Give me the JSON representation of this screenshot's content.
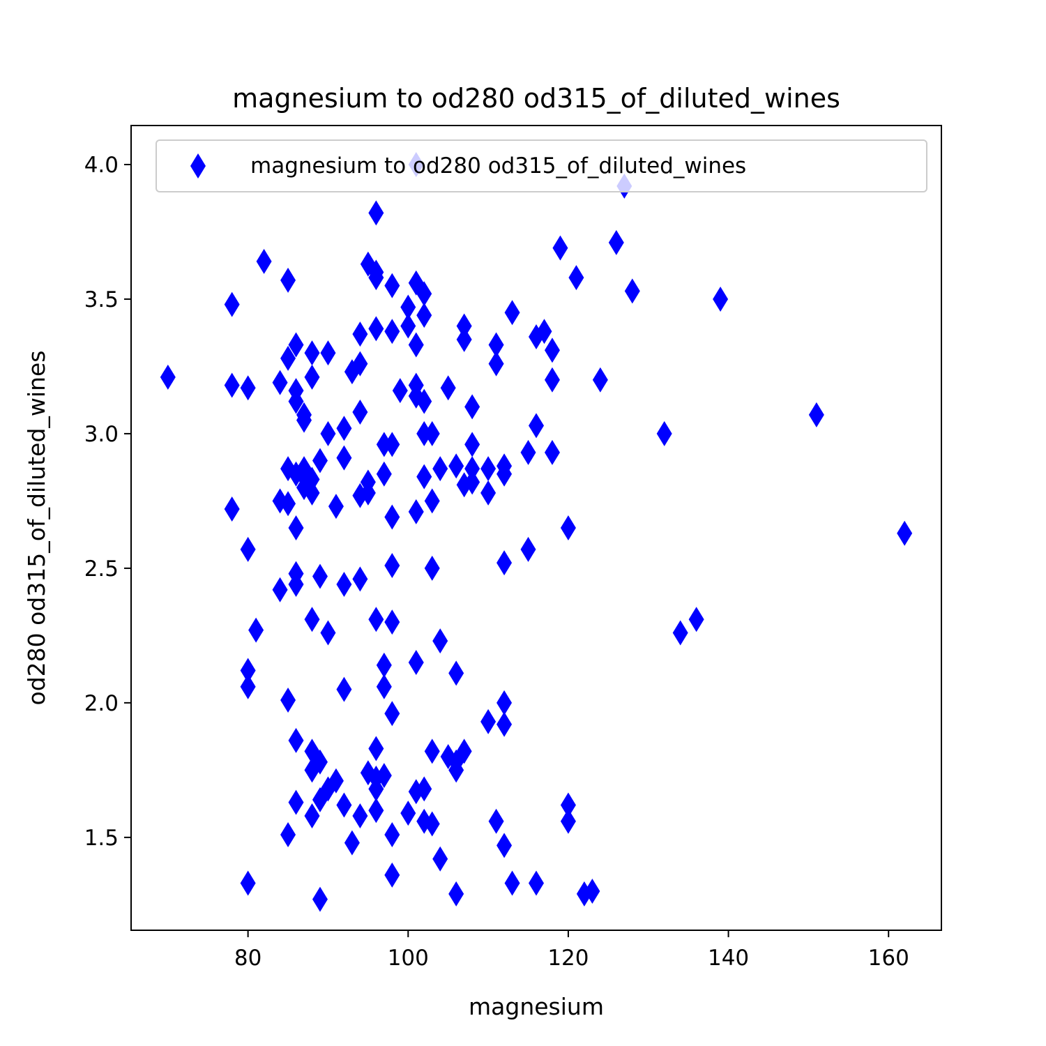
{
  "chart_data": {
    "type": "scatter",
    "title": "magnesium to od280 od315_of_diluted_wines",
    "xlabel": "magnesium",
    "ylabel": "od280 od315_of_diluted_wines",
    "xlim": [
      65.4,
      166.6
    ],
    "ylim": [
      1.155,
      4.145
    ],
    "xticks": [
      80,
      100,
      120,
      140,
      160
    ],
    "yticks": [
      1.5,
      2.0,
      2.5,
      3.0,
      3.5,
      4.0
    ],
    "xtick_labels": [
      "80",
      "100",
      "120",
      "140",
      "160"
    ],
    "ytick_labels": [
      "1.5",
      "2.0",
      "2.5",
      "3.0",
      "3.5",
      "4.0"
    ],
    "grid": false,
    "legend_position": "top-right",
    "marker": "thin-diamond",
    "marker_color": "#0000ff",
    "series": [
      {
        "name": "magnesium to od280 od315_of_diluted_wines",
        "color": "#0000ff",
        "points": [
          [
            70,
            3.21
          ],
          [
            78,
            3.48
          ],
          [
            78,
            3.18
          ],
          [
            78,
            2.72
          ],
          [
            80,
            3.17
          ],
          [
            80,
            2.57
          ],
          [
            80,
            2.12
          ],
          [
            80,
            2.06
          ],
          [
            80,
            1.33
          ],
          [
            81,
            2.27
          ],
          [
            82,
            3.64
          ],
          [
            84,
            3.19
          ],
          [
            84,
            2.75
          ],
          [
            84,
            2.42
          ],
          [
            85,
            3.57
          ],
          [
            85,
            3.28
          ],
          [
            85,
            2.87
          ],
          [
            85,
            2.74
          ],
          [
            85,
            2.01
          ],
          [
            85,
            1.51
          ],
          [
            86,
            3.33
          ],
          [
            86,
            3.16
          ],
          [
            86,
            3.12
          ],
          [
            86,
            2.85
          ],
          [
            86,
            2.65
          ],
          [
            86,
            2.48
          ],
          [
            86,
            2.44
          ],
          [
            86,
            1.86
          ],
          [
            86,
            1.63
          ],
          [
            87,
            3.07
          ],
          [
            87,
            3.05
          ],
          [
            87,
            2.87
          ],
          [
            87,
            2.84
          ],
          [
            87,
            2.8
          ],
          [
            88,
            3.3
          ],
          [
            88,
            3.21
          ],
          [
            88,
            2.83
          ],
          [
            88,
            2.78
          ],
          [
            88,
            2.31
          ],
          [
            88,
            1.82
          ],
          [
            88,
            1.75
          ],
          [
            88,
            1.58
          ],
          [
            89,
            2.9
          ],
          [
            89,
            2.47
          ],
          [
            89,
            1.78
          ],
          [
            89,
            1.64
          ],
          [
            89,
            1.27
          ],
          [
            90,
            3.3
          ],
          [
            90,
            3.0
          ],
          [
            90,
            2.26
          ],
          [
            90,
            1.68
          ],
          [
            91,
            2.73
          ],
          [
            91,
            1.71
          ],
          [
            92,
            3.02
          ],
          [
            92,
            2.91
          ],
          [
            92,
            2.44
          ],
          [
            92,
            2.05
          ],
          [
            92,
            1.62
          ],
          [
            93,
            3.23
          ],
          [
            93,
            1.48
          ],
          [
            94,
            3.37
          ],
          [
            94,
            3.26
          ],
          [
            94,
            3.08
          ],
          [
            94,
            2.77
          ],
          [
            94,
            2.46
          ],
          [
            94,
            1.58
          ],
          [
            95,
            3.63
          ],
          [
            95,
            2.78
          ],
          [
            95,
            2.82
          ],
          [
            95,
            1.74
          ],
          [
            96,
            3.82
          ],
          [
            96,
            3.6
          ],
          [
            96,
            3.58
          ],
          [
            96,
            3.39
          ],
          [
            96,
            2.31
          ],
          [
            96,
            1.83
          ],
          [
            96,
            1.72
          ],
          [
            96,
            1.68
          ],
          [
            96,
            1.6
          ],
          [
            97,
            2.96
          ],
          [
            97,
            2.85
          ],
          [
            97,
            2.14
          ],
          [
            97,
            2.06
          ],
          [
            97,
            1.73
          ],
          [
            98,
            3.55
          ],
          [
            98,
            3.38
          ],
          [
            98,
            2.96
          ],
          [
            98,
            2.69
          ],
          [
            98,
            2.51
          ],
          [
            98,
            2.3
          ],
          [
            98,
            1.96
          ],
          [
            98,
            1.51
          ],
          [
            98,
            1.36
          ],
          [
            99,
            3.16
          ],
          [
            100,
            3.47
          ],
          [
            100,
            3.4
          ],
          [
            100,
            1.59
          ],
          [
            101,
            4.0
          ],
          [
            101,
            3.56
          ],
          [
            101,
            3.33
          ],
          [
            101,
            3.18
          ],
          [
            101,
            3.14
          ],
          [
            101,
            2.71
          ],
          [
            101,
            2.15
          ],
          [
            101,
            1.67
          ],
          [
            102,
            3.52
          ],
          [
            102,
            3.44
          ],
          [
            102,
            3.12
          ],
          [
            102,
            3.0
          ],
          [
            102,
            2.84
          ],
          [
            102,
            1.68
          ],
          [
            102,
            1.56
          ],
          [
            103,
            3.0
          ],
          [
            103,
            2.75
          ],
          [
            103,
            2.5
          ],
          [
            103,
            1.82
          ],
          [
            103,
            1.55
          ],
          [
            104,
            2.87
          ],
          [
            104,
            2.23
          ],
          [
            104,
            1.42
          ],
          [
            105,
            3.17
          ],
          [
            105,
            1.8
          ],
          [
            106,
            2.88
          ],
          [
            106,
            2.11
          ],
          [
            106,
            1.78
          ],
          [
            106,
            1.75
          ],
          [
            106,
            1.29
          ],
          [
            107,
            3.4
          ],
          [
            107,
            3.35
          ],
          [
            107,
            2.81
          ],
          [
            107,
            1.82
          ],
          [
            108,
            3.1
          ],
          [
            108,
            2.96
          ],
          [
            108,
            2.87
          ],
          [
            108,
            2.82
          ],
          [
            110,
            2.87
          ],
          [
            110,
            2.78
          ],
          [
            110,
            1.93
          ],
          [
            111,
            3.33
          ],
          [
            111,
            3.26
          ],
          [
            111,
            1.56
          ],
          [
            112,
            2.88
          ],
          [
            112,
            2.85
          ],
          [
            112,
            2.52
          ],
          [
            112,
            2.0
          ],
          [
            112,
            1.92
          ],
          [
            112,
            1.47
          ],
          [
            113,
            3.45
          ],
          [
            113,
            1.33
          ],
          [
            115,
            2.93
          ],
          [
            115,
            2.57
          ],
          [
            116,
            3.36
          ],
          [
            116,
            3.03
          ],
          [
            116,
            1.33
          ],
          [
            117,
            3.38
          ],
          [
            118,
            3.31
          ],
          [
            118,
            3.2
          ],
          [
            118,
            2.93
          ],
          [
            119,
            3.69
          ],
          [
            120,
            2.65
          ],
          [
            120,
            1.62
          ],
          [
            120,
            1.56
          ],
          [
            121,
            3.58
          ],
          [
            122,
            1.29
          ],
          [
            123,
            1.3
          ],
          [
            124,
            3.2
          ],
          [
            126,
            3.71
          ],
          [
            127,
            3.92
          ],
          [
            128,
            3.53
          ],
          [
            132,
            3.0
          ],
          [
            134,
            2.26
          ],
          [
            136,
            2.31
          ],
          [
            139,
            3.5
          ],
          [
            151,
            3.07
          ],
          [
            162,
            2.63
          ]
        ]
      }
    ]
  }
}
